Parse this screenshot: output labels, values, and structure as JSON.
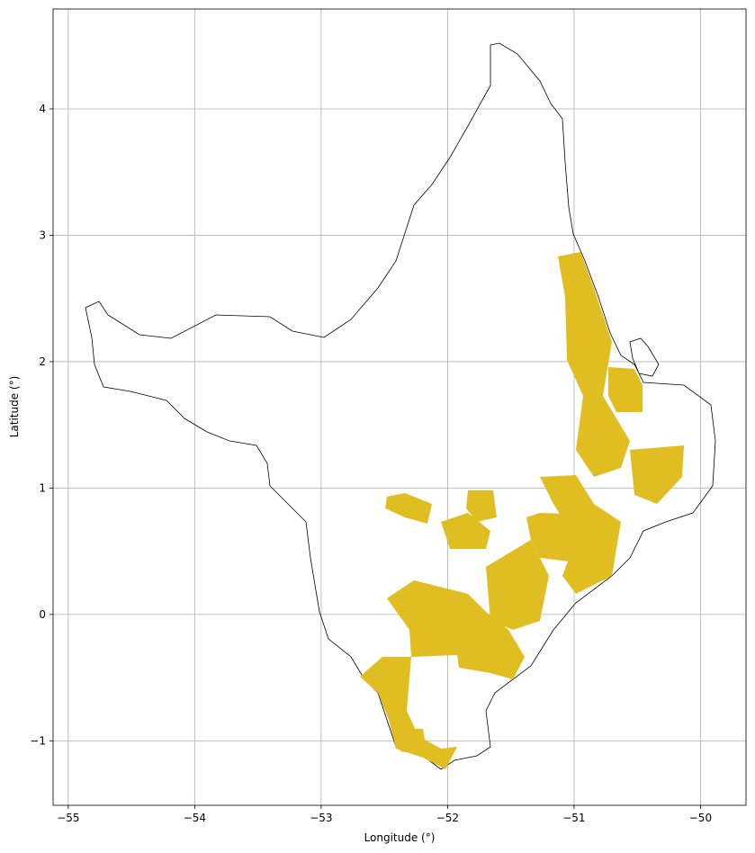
{
  "chart_data": {
    "type": "map",
    "xlabel": "Longitude (°)",
    "ylabel": "Latitude (°)",
    "xlim": [
      -55.12,
      -49.64
    ],
    "ylim": [
      -1.51,
      4.79
    ],
    "xticks": [
      {
        "value": -55,
        "label": "−55"
      },
      {
        "value": -54,
        "label": "−54"
      },
      {
        "value": -53,
        "label": "−53"
      },
      {
        "value": -52,
        "label": "−52"
      },
      {
        "value": -51,
        "label": "−51"
      },
      {
        "value": -50,
        "label": "−50"
      }
    ],
    "yticks": [
      {
        "value": -1,
        "label": "−1"
      },
      0,
      1,
      2,
      3,
      4
    ],
    "grid": true,
    "fill_color": "#e0be22"
  }
}
